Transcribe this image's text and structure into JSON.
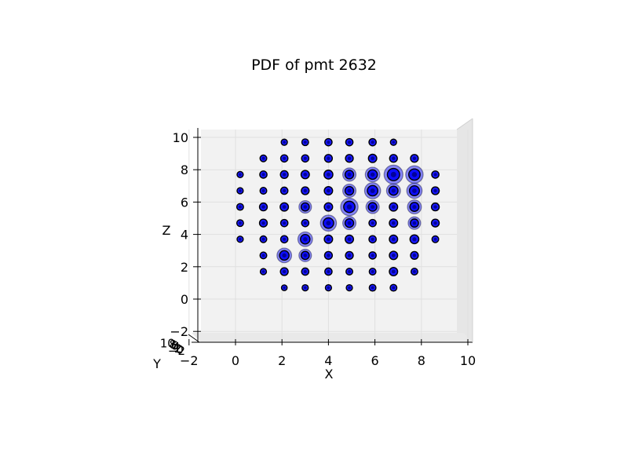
{
  "chart_data": {
    "type": "scatter",
    "projection": "3d",
    "title": "PDF of pmt 2632",
    "xlabel": "X",
    "ylabel": "Y",
    "zlabel": "Z",
    "xlim": [
      -2,
      10
    ],
    "ylim": [
      -2,
      10
    ],
    "zlim": [
      -2,
      10
    ],
    "x_ticks": [
      "−2",
      "0",
      "2",
      "4",
      "6",
      "8",
      "10"
    ],
    "z_ticks": [
      "−2",
      "0",
      "2",
      "4",
      "6",
      "8",
      "10"
    ],
    "y_ticks_visible": [
      "−2",
      "0",
      "2",
      "4",
      "6",
      "8",
      "10"
    ],
    "grid": true,
    "marker_color": "#0000ff",
    "marker_edge_color": "#000000",
    "pane_color": "#f2f2f2",
    "points": [
      {
        "x": 2.1,
        "z": 9.7,
        "s": 0.25
      },
      {
        "x": 3.0,
        "z": 9.7,
        "s": 0.3
      },
      {
        "x": 4.0,
        "z": 9.7,
        "s": 0.35
      },
      {
        "x": 4.9,
        "z": 9.7,
        "s": 0.35
      },
      {
        "x": 5.9,
        "z": 9.7,
        "s": 0.35
      },
      {
        "x": 6.8,
        "z": 9.7,
        "s": 0.25
      },
      {
        "x": 1.2,
        "z": 8.7,
        "s": 0.3
      },
      {
        "x": 2.1,
        "z": 8.7,
        "s": 0.35
      },
      {
        "x": 3.0,
        "z": 8.7,
        "s": 0.35
      },
      {
        "x": 4.0,
        "z": 8.7,
        "s": 0.4
      },
      {
        "x": 4.9,
        "z": 8.7,
        "s": 0.4
      },
      {
        "x": 5.9,
        "z": 8.7,
        "s": 0.45
      },
      {
        "x": 6.8,
        "z": 8.7,
        "s": 0.4
      },
      {
        "x": 7.7,
        "z": 8.7,
        "s": 0.4
      },
      {
        "x": 0.2,
        "z": 7.7,
        "s": 0.25
      },
      {
        "x": 1.2,
        "z": 7.7,
        "s": 0.35
      },
      {
        "x": 2.1,
        "z": 7.7,
        "s": 0.4
      },
      {
        "x": 3.0,
        "z": 7.7,
        "s": 0.45
      },
      {
        "x": 4.0,
        "z": 7.7,
        "s": 0.5
      },
      {
        "x": 4.9,
        "z": 7.7,
        "s": 0.6
      },
      {
        "x": 5.9,
        "z": 7.7,
        "s": 0.7
      },
      {
        "x": 6.8,
        "z": 7.7,
        "s": 1.0
      },
      {
        "x": 7.7,
        "z": 7.7,
        "s": 0.9
      },
      {
        "x": 8.6,
        "z": 7.7,
        "s": 0.35
      },
      {
        "x": 0.2,
        "z": 6.7,
        "s": 0.25
      },
      {
        "x": 1.2,
        "z": 6.7,
        "s": 0.3
      },
      {
        "x": 2.1,
        "z": 6.7,
        "s": 0.35
      },
      {
        "x": 3.0,
        "z": 6.7,
        "s": 0.4
      },
      {
        "x": 4.0,
        "z": 6.7,
        "s": 0.45
      },
      {
        "x": 4.9,
        "z": 6.7,
        "s": 0.6
      },
      {
        "x": 5.9,
        "z": 6.7,
        "s": 0.8
      },
      {
        "x": 6.8,
        "z": 6.7,
        "s": 0.65
      },
      {
        "x": 7.7,
        "z": 6.7,
        "s": 0.75
      },
      {
        "x": 8.6,
        "z": 6.7,
        "s": 0.4
      },
      {
        "x": 0.2,
        "z": 5.7,
        "s": 0.3
      },
      {
        "x": 1.2,
        "z": 5.7,
        "s": 0.4
      },
      {
        "x": 2.1,
        "z": 5.7,
        "s": 0.45
      },
      {
        "x": 3.0,
        "z": 5.7,
        "s": 0.55
      },
      {
        "x": 4.0,
        "z": 5.7,
        "s": 0.45
      },
      {
        "x": 4.9,
        "z": 5.7,
        "s": 0.9
      },
      {
        "x": 5.9,
        "z": 5.7,
        "s": 0.6
      },
      {
        "x": 6.8,
        "z": 5.7,
        "s": 0.45
      },
      {
        "x": 7.7,
        "z": 5.7,
        "s": 0.65
      },
      {
        "x": 8.6,
        "z": 5.7,
        "s": 0.4
      },
      {
        "x": 0.2,
        "z": 4.7,
        "s": 0.3
      },
      {
        "x": 1.2,
        "z": 4.7,
        "s": 0.4
      },
      {
        "x": 2.1,
        "z": 4.7,
        "s": 0.35
      },
      {
        "x": 3.0,
        "z": 4.7,
        "s": 0.35
      },
      {
        "x": 4.0,
        "z": 4.7,
        "s": 0.8
      },
      {
        "x": 4.9,
        "z": 4.7,
        "s": 0.6
      },
      {
        "x": 5.9,
        "z": 4.7,
        "s": 0.35
      },
      {
        "x": 6.8,
        "z": 4.7,
        "s": 0.45
      },
      {
        "x": 7.7,
        "z": 4.7,
        "s": 0.55
      },
      {
        "x": 8.6,
        "z": 4.7,
        "s": 0.4
      },
      {
        "x": 0.2,
        "z": 3.7,
        "s": 0.25
      },
      {
        "x": 1.2,
        "z": 3.7,
        "s": 0.3
      },
      {
        "x": 2.1,
        "z": 3.7,
        "s": 0.35
      },
      {
        "x": 3.0,
        "z": 3.7,
        "s": 0.7
      },
      {
        "x": 4.0,
        "z": 3.7,
        "s": 0.45
      },
      {
        "x": 4.9,
        "z": 3.7,
        "s": 0.45
      },
      {
        "x": 5.9,
        "z": 3.7,
        "s": 0.35
      },
      {
        "x": 6.8,
        "z": 3.7,
        "s": 0.45
      },
      {
        "x": 7.7,
        "z": 3.7,
        "s": 0.5
      },
      {
        "x": 8.6,
        "z": 3.7,
        "s": 0.3
      },
      {
        "x": 1.2,
        "z": 2.7,
        "s": 0.3
      },
      {
        "x": 2.1,
        "z": 2.7,
        "s": 0.7
      },
      {
        "x": 3.0,
        "z": 2.7,
        "s": 0.55
      },
      {
        "x": 4.0,
        "z": 2.7,
        "s": 0.4
      },
      {
        "x": 4.9,
        "z": 2.7,
        "s": 0.4
      },
      {
        "x": 5.9,
        "z": 2.7,
        "s": 0.35
      },
      {
        "x": 6.8,
        "z": 2.7,
        "s": 0.45
      },
      {
        "x": 7.7,
        "z": 2.7,
        "s": 0.4
      },
      {
        "x": 1.2,
        "z": 1.7,
        "s": 0.25
      },
      {
        "x": 2.1,
        "z": 1.7,
        "s": 0.4
      },
      {
        "x": 3.0,
        "z": 1.7,
        "s": 0.35
      },
      {
        "x": 4.0,
        "z": 1.7,
        "s": 0.35
      },
      {
        "x": 4.9,
        "z": 1.7,
        "s": 0.3
      },
      {
        "x": 5.9,
        "z": 1.7,
        "s": 0.3
      },
      {
        "x": 6.8,
        "z": 1.7,
        "s": 0.45
      },
      {
        "x": 7.7,
        "z": 1.7,
        "s": 0.3
      },
      {
        "x": 2.1,
        "z": 0.7,
        "s": 0.2
      },
      {
        "x": 3.0,
        "z": 0.7,
        "s": 0.25
      },
      {
        "x": 4.0,
        "z": 0.7,
        "s": 0.25
      },
      {
        "x": 4.9,
        "z": 0.7,
        "s": 0.25
      },
      {
        "x": 5.9,
        "z": 0.7,
        "s": 0.3
      },
      {
        "x": 6.8,
        "z": 0.7,
        "s": 0.3
      }
    ]
  }
}
